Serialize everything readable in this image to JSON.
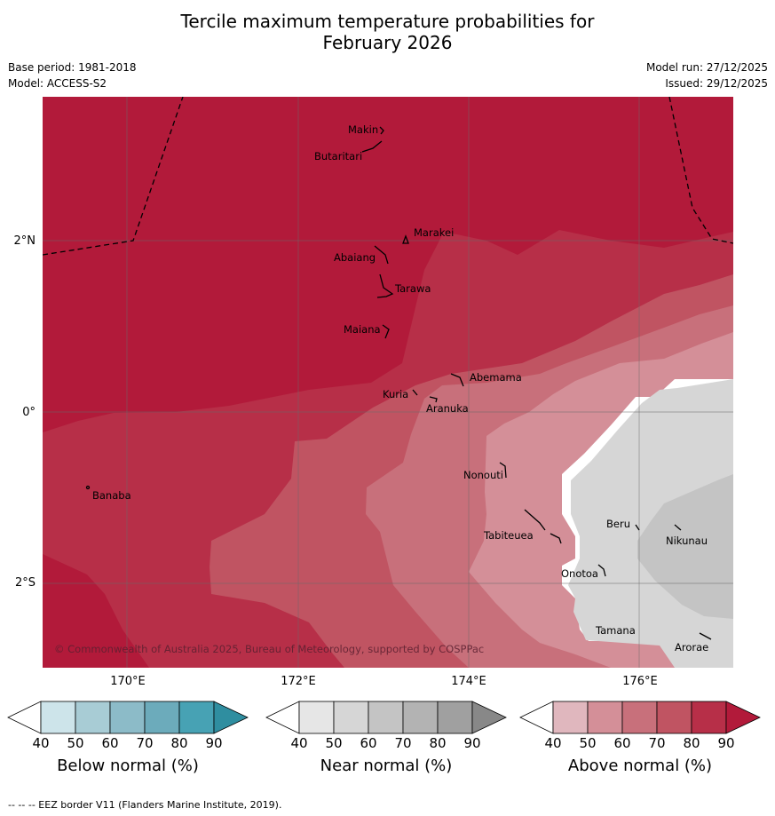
{
  "title_line1": "Tercile maximum temperature probabilities for",
  "title_line2": "February 2026",
  "base_period": "Base period: 1981-2018",
  "model": "Model: ACCESS-S2",
  "model_run": "Model run: 27/12/2025",
  "issued": "Issued: 29/12/2025",
  "copyright": "© Commonwealth of Australia 2025, Bureau of Meteorology, supported by COSPPac",
  "lat_labels": [
    "2°N",
    "0°",
    "2°S"
  ],
  "lon_labels": [
    "170°E",
    "172°E",
    "174°E",
    "176°E"
  ],
  "islands": [
    "Makin",
    "Butaritari",
    "Marakei",
    "Abaiang",
    "Tarawa",
    "Maiana",
    "Abemama",
    "Kuria",
    "Aranuka",
    "Banaba",
    "Nonouti",
    "Beru",
    "Nikunau",
    "Tabiteuea",
    "Onotoa",
    "Tamana",
    "Arorae"
  ],
  "colorbars": [
    {
      "label": "Below normal (%)",
      "ticks": [
        "40",
        "50",
        "60",
        "70",
        "80",
        "90"
      ],
      "colors": [
        "#ffffff",
        "#cde4ea",
        "#a8ccd5",
        "#8cbbc8",
        "#6cabbb",
        "#47a2b4",
        "#2f8ea0"
      ]
    },
    {
      "label": "Near normal (%)",
      "ticks": [
        "40",
        "50",
        "60",
        "70",
        "80",
        "90"
      ],
      "colors": [
        "#ffffff",
        "#e6e6e6",
        "#d6d6d6",
        "#c4c4c4",
        "#b3b3b3",
        "#a0a0a0",
        "#888888"
      ]
    },
    {
      "label": "Above normal (%)",
      "ticks": [
        "40",
        "50",
        "60",
        "70",
        "80",
        "90"
      ],
      "colors": [
        "#ffffff",
        "#e0b7be",
        "#d48f98",
        "#c8707b",
        "#c05462",
        "#b72f48",
        "#b21a3a"
      ]
    }
  ],
  "footer": "--  --  -- EEZ border V11 (Flanders Marine Institute, 2019)."
}
